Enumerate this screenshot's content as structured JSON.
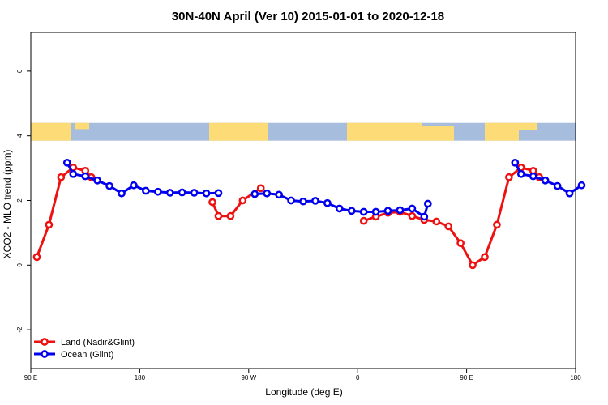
{
  "chart_data": {
    "type": "line",
    "title": "30N-40N April (Ver 10)   2015-01-01 to 2020-12-18",
    "xlabel": "Longitude (deg E)",
    "ylabel": "XCO2 - MLO trend (ppm)",
    "xlim": [
      90,
      540
    ],
    "ylim": [
      -3.2,
      7.2
    ],
    "x_ticks": [
      {
        "value": 90,
        "label": "90 E"
      },
      {
        "value": 180,
        "label": "180"
      },
      {
        "value": 270,
        "label": "90 W"
      },
      {
        "value": 360,
        "label": "0"
      },
      {
        "value": 450,
        "label": "90 E"
      },
      {
        "value": 540,
        "label": "180"
      }
    ],
    "y_ticks": [
      {
        "value": -2,
        "label": "-2"
      },
      {
        "value": 0,
        "label": "0"
      },
      {
        "value": 2,
        "label": "2"
      },
      {
        "value": 4,
        "label": "4"
      },
      {
        "value": 6,
        "label": "6"
      }
    ],
    "map_band": {
      "y_bottom": 3.85,
      "y_top": 4.4,
      "ocean_color": "#a7bddd",
      "land_color": "#fddc78"
    },
    "legend_position": "bottom-left",
    "series": [
      {
        "name": "Land (Nadir&Glint)",
        "color": "#ee1111",
        "segments": [
          [
            [
              95,
              0.25
            ],
            [
              105,
              1.25
            ],
            [
              115,
              2.72
            ],
            [
              125,
              3.02
            ],
            [
              135,
              2.92
            ],
            [
              140,
              2.72
            ]
          ],
          [
            [
              240,
              1.95
            ],
            [
              245,
              1.52
            ],
            [
              255,
              1.52
            ],
            [
              265,
              2.0
            ],
            [
              280,
              2.38
            ]
          ],
          [
            [
              365,
              1.37
            ],
            [
              375,
              1.5
            ],
            [
              385,
              1.62
            ],
            [
              395,
              1.65
            ],
            [
              405,
              1.52
            ],
            [
              415,
              1.4
            ],
            [
              425,
              1.35
            ],
            [
              435,
              1.2
            ],
            [
              445,
              0.68
            ],
            [
              455,
              0.0
            ],
            [
              465,
              0.25
            ],
            [
              475,
              1.25
            ],
            [
              485,
              2.72
            ],
            [
              495,
              3.02
            ],
            [
              505,
              2.92
            ],
            [
              510,
              2.72
            ]
          ]
        ]
      },
      {
        "name": "Ocean (Glint)",
        "color": "#0000ee",
        "segments": [
          [
            [
              120,
              3.17
            ],
            [
              125,
              2.82
            ],
            [
              135,
              2.75
            ],
            [
              145,
              2.62
            ],
            [
              155,
              2.45
            ],
            [
              165,
              2.22
            ],
            [
              175,
              2.47
            ],
            [
              185,
              2.3
            ],
            [
              195,
              2.27
            ],
            [
              205,
              2.24
            ],
            [
              215,
              2.25
            ],
            [
              225,
              2.24
            ],
            [
              235,
              2.22
            ],
            [
              245,
              2.23
            ]
          ],
          [
            [
              275,
              2.2
            ],
            [
              285,
              2.22
            ],
            [
              295,
              2.18
            ],
            [
              305,
              2.0
            ],
            [
              315,
              1.97
            ],
            [
              325,
              1.99
            ],
            [
              335,
              1.92
            ],
            [
              345,
              1.75
            ],
            [
              355,
              1.68
            ],
            [
              365,
              1.65
            ],
            [
              375,
              1.65
            ],
            [
              385,
              1.68
            ],
            [
              395,
              1.7
            ],
            [
              405,
              1.75
            ],
            [
              415,
              1.5
            ],
            [
              418,
              1.9
            ]
          ],
          [
            [
              490,
              3.17
            ],
            [
              495,
              2.82
            ],
            [
              505,
              2.75
            ],
            [
              515,
              2.62
            ],
            [
              525,
              2.45
            ],
            [
              535,
              2.22
            ],
            [
              545,
              2.47
            ]
          ]
        ]
      }
    ]
  }
}
